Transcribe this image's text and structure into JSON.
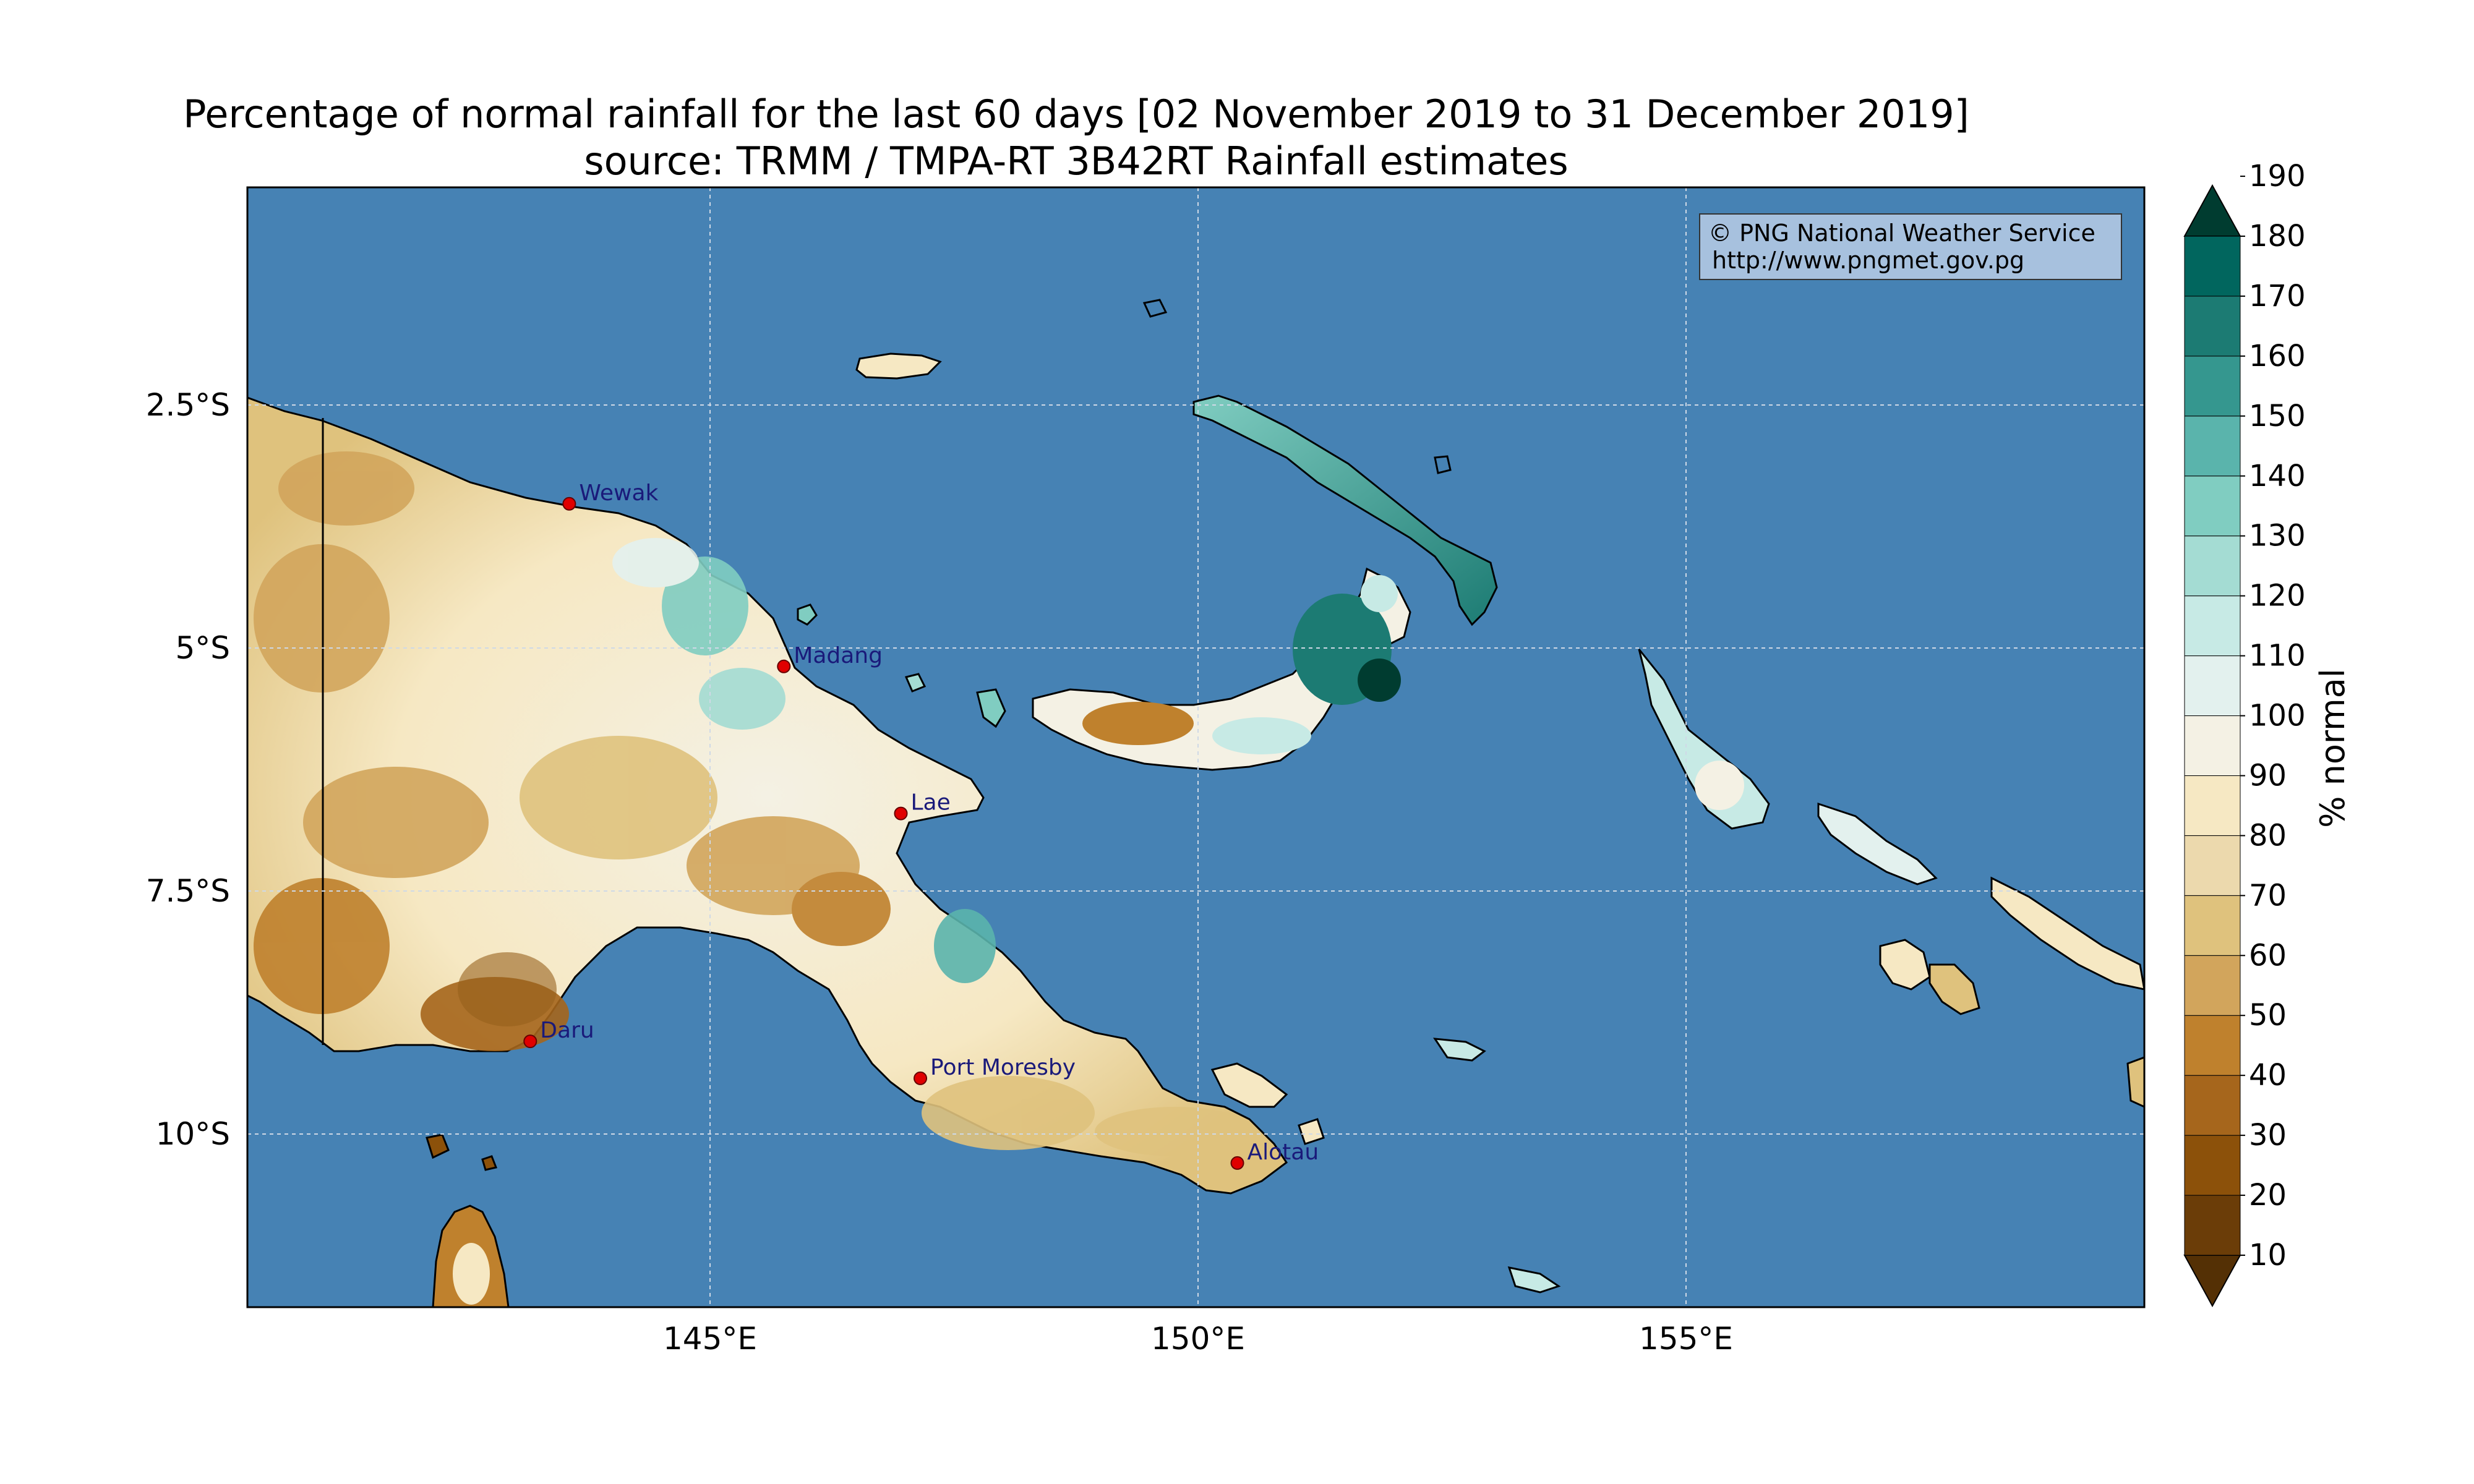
{
  "title": {
    "line1": "Percentage of normal rainfall for the last 60 days [02 November 2019 to 31 December 2019]",
    "line2": "source: TRMM / TMPA-RT 3B42RT Rainfall estimates"
  },
  "credit": {
    "line1": "© PNG National Weather Service",
    "line2": "http://www.pngmet.gov.pg"
  },
  "axes": {
    "lon_ticks": [
      "145°E",
      "150°E",
      "155°E"
    ],
    "lat_ticks": [
      "2.5°S",
      "5°S",
      "7.5°S",
      "10°S"
    ]
  },
  "cities": [
    {
      "name": "Wewak",
      "lon": 143.6,
      "lat": -3.55
    },
    {
      "name": "Madang",
      "lon": 145.8,
      "lat": -5.22
    },
    {
      "name": "Lae",
      "lon": 147.0,
      "lat": -6.73
    },
    {
      "name": "Daru",
      "lon": 143.2,
      "lat": -9.07
    },
    {
      "name": "Port Moresby",
      "lon": 147.2,
      "lat": -9.45
    },
    {
      "name": "Alotau",
      "lon": 150.45,
      "lat": -10.32
    }
  ],
  "colorbar": {
    "title": "% normal",
    "levels": [
      "10",
      "20",
      "30",
      "40",
      "50",
      "60",
      "70",
      "80",
      "90",
      "100",
      "110",
      "120",
      "130",
      "140",
      "150",
      "160",
      "170",
      "180",
      "190"
    ],
    "colors": [
      "#543005",
      "#6b3d08",
      "#8c510a",
      "#a6661c",
      "#bf812d",
      "#d2a55c",
      "#dfc27d",
      "#ecd9ad",
      "#f6e8c3",
      "#f4f1e4",
      "#e3f1ee",
      "#c7eae5",
      "#a4dcd3",
      "#80cdc1",
      "#5ab4ac",
      "#35978f",
      "#1c7b73",
      "#01665e",
      "#003c30"
    ]
  },
  "map_colors": {
    "ocean": "#4682b4",
    "grid": "#cfd9e6"
  }
}
